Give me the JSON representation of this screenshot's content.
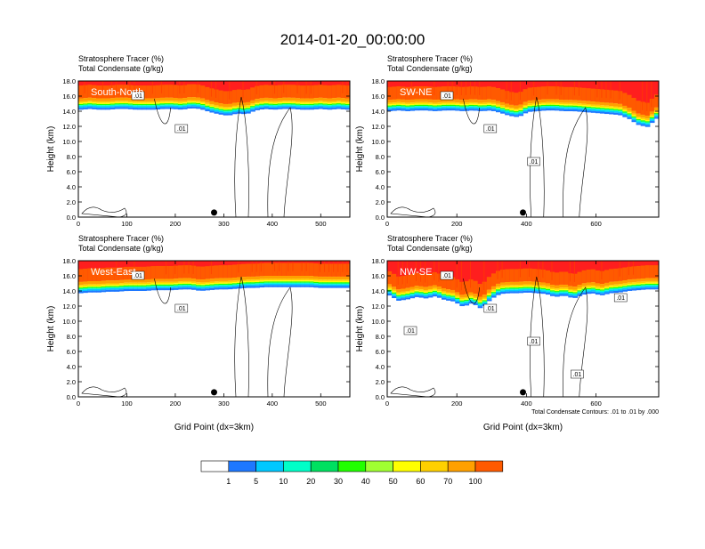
{
  "title": "2014-01-20_00:00:00",
  "colors": {
    "levels": [
      "#ffffff",
      "#1e78ff",
      "#00c8ff",
      "#00ffc8",
      "#00e060",
      "#22ff00",
      "#a0ff32",
      "#ffff00",
      "#ffd000",
      "#ffa000",
      "#ff5a00",
      "#ff1e1e"
    ]
  },
  "chart_data": [
    {
      "type": "heatmap",
      "panel_label": "South-North",
      "header_line1": "Stratosphere Tracer   (%)",
      "header_line2": "Total Condensate   (g/kg)",
      "ylabel": "Height (km)",
      "xlabel": "",
      "xlim": [
        0,
        560
      ],
      "ylim": [
        0,
        18
      ],
      "xticks": [
        "0",
        "100",
        "200",
        "300",
        "400",
        "500"
      ],
      "yticks": [
        "0.0",
        "2.0",
        "4.0",
        "6.0",
        "8.0",
        "10.0",
        "12.0",
        "14.0",
        "16.0",
        "18.0"
      ],
      "tropopause_km_profile": [
        14.8,
        14.9,
        14.8,
        14.8,
        14.9,
        14.9,
        14.8,
        14.8,
        14.8,
        14.9,
        14.9,
        14.8,
        15.0,
        14.9,
        14.5,
        14.2,
        14.0,
        14.3,
        14.2,
        14.7,
        14.9,
        14.8,
        14.9,
        14.9,
        14.8,
        14.8,
        14.9,
        14.8,
        14.9,
        14.8
      ],
      "contour_labels": [
        ".01",
        ".01"
      ],
      "marker_x": 280
    },
    {
      "type": "heatmap",
      "panel_label": "SW-NE",
      "header_line1": "Stratosphere Tracer   (%)",
      "header_line2": "Total Condensate   (g/kg)",
      "ylabel": "Height (km)",
      "xlabel": "",
      "xlim": [
        0,
        780
      ],
      "ylim": [
        0,
        18
      ],
      "xticks": [
        "0",
        "200",
        "400",
        "600"
      ],
      "yticks": [
        "0.0",
        "2.0",
        "4.0",
        "6.0",
        "8.0",
        "10.0",
        "12.0",
        "14.0",
        "16.0",
        "18.0"
      ],
      "tropopause_km_profile": [
        14.6,
        14.7,
        14.6,
        14.7,
        14.7,
        14.6,
        14.7,
        14.7,
        14.6,
        14.7,
        14.6,
        14.7,
        14.4,
        14.0,
        13.8,
        14.5,
        14.6,
        14.7,
        14.7,
        14.6,
        14.6,
        14.5,
        14.4,
        14.3,
        14.2,
        14.1,
        13.6,
        12.8,
        12.5,
        13.6
      ],
      "contour_labels": [
        ".01",
        ".01",
        ".01"
      ],
      "marker_x": 390
    },
    {
      "type": "heatmap",
      "panel_label": "West-East",
      "header_line1": "Stratosphere Tracer   (%)",
      "header_line2": "Total Condensate   (g/kg)",
      "ylabel": "Height (km)",
      "xlabel": "Grid Point (dx=3km)",
      "xlim": [
        0,
        560
      ],
      "ylim": [
        0,
        18
      ],
      "xticks": [
        "0",
        "100",
        "200",
        "300",
        "400",
        "500"
      ],
      "yticks": [
        "0.0",
        "2.0",
        "4.0",
        "6.0",
        "8.0",
        "10.0",
        "12.0",
        "14.0",
        "16.0",
        "18.0"
      ],
      "tropopause_km_profile": [
        14.3,
        14.4,
        14.4,
        14.5,
        14.5,
        14.6,
        14.6,
        14.6,
        14.7,
        14.7,
        14.7,
        14.8,
        14.8,
        14.6,
        14.7,
        14.8,
        14.8,
        14.9,
        15.0,
        15.0,
        15.1,
        15.1,
        15.1,
        15.1,
        15.1,
        15.1,
        15.0,
        15.0,
        15.0,
        15.0
      ],
      "contour_labels": [
        ".01",
        ".01"
      ],
      "marker_x": 280
    },
    {
      "type": "heatmap",
      "panel_label": "NW-SE",
      "header_line1": "Stratosphere Tracer   (%)",
      "header_line2": "Total Condensate   (g/kg)",
      "ylabel": "Height (km)",
      "xlabel": "Grid Point (dx=3km)",
      "xlim": [
        0,
        780
      ],
      "ylim": [
        0,
        18
      ],
      "xticks": [
        "0",
        "200",
        "400",
        "600"
      ],
      "yticks": [
        "0.0",
        "2.0",
        "4.0",
        "6.0",
        "8.0",
        "10.0",
        "12.0",
        "14.0",
        "16.0",
        "18.0"
      ],
      "tropopause_km_profile": [
        14.0,
        13.3,
        13.5,
        13.8,
        13.6,
        13.9,
        13.4,
        13.2,
        12.5,
        13.0,
        12.2,
        13.5,
        14.2,
        14.3,
        14.3,
        14.4,
        14.3,
        14.2,
        13.8,
        14.0,
        13.6,
        14.1,
        14.3,
        14.0,
        14.3,
        14.4,
        14.6,
        14.7,
        14.8,
        14.8
      ],
      "contour_labels": [
        ".01",
        ".01",
        ".01",
        ".01",
        ".01",
        ".01"
      ],
      "marker_x": 390,
      "contour_note": "Total Condensate Contours: .01 to .01 by .000"
    }
  ],
  "colorbar": {
    "labels": [
      "1",
      "5",
      "10",
      "20",
      "30",
      "40",
      "50",
      "60",
      "70",
      "100"
    ]
  }
}
